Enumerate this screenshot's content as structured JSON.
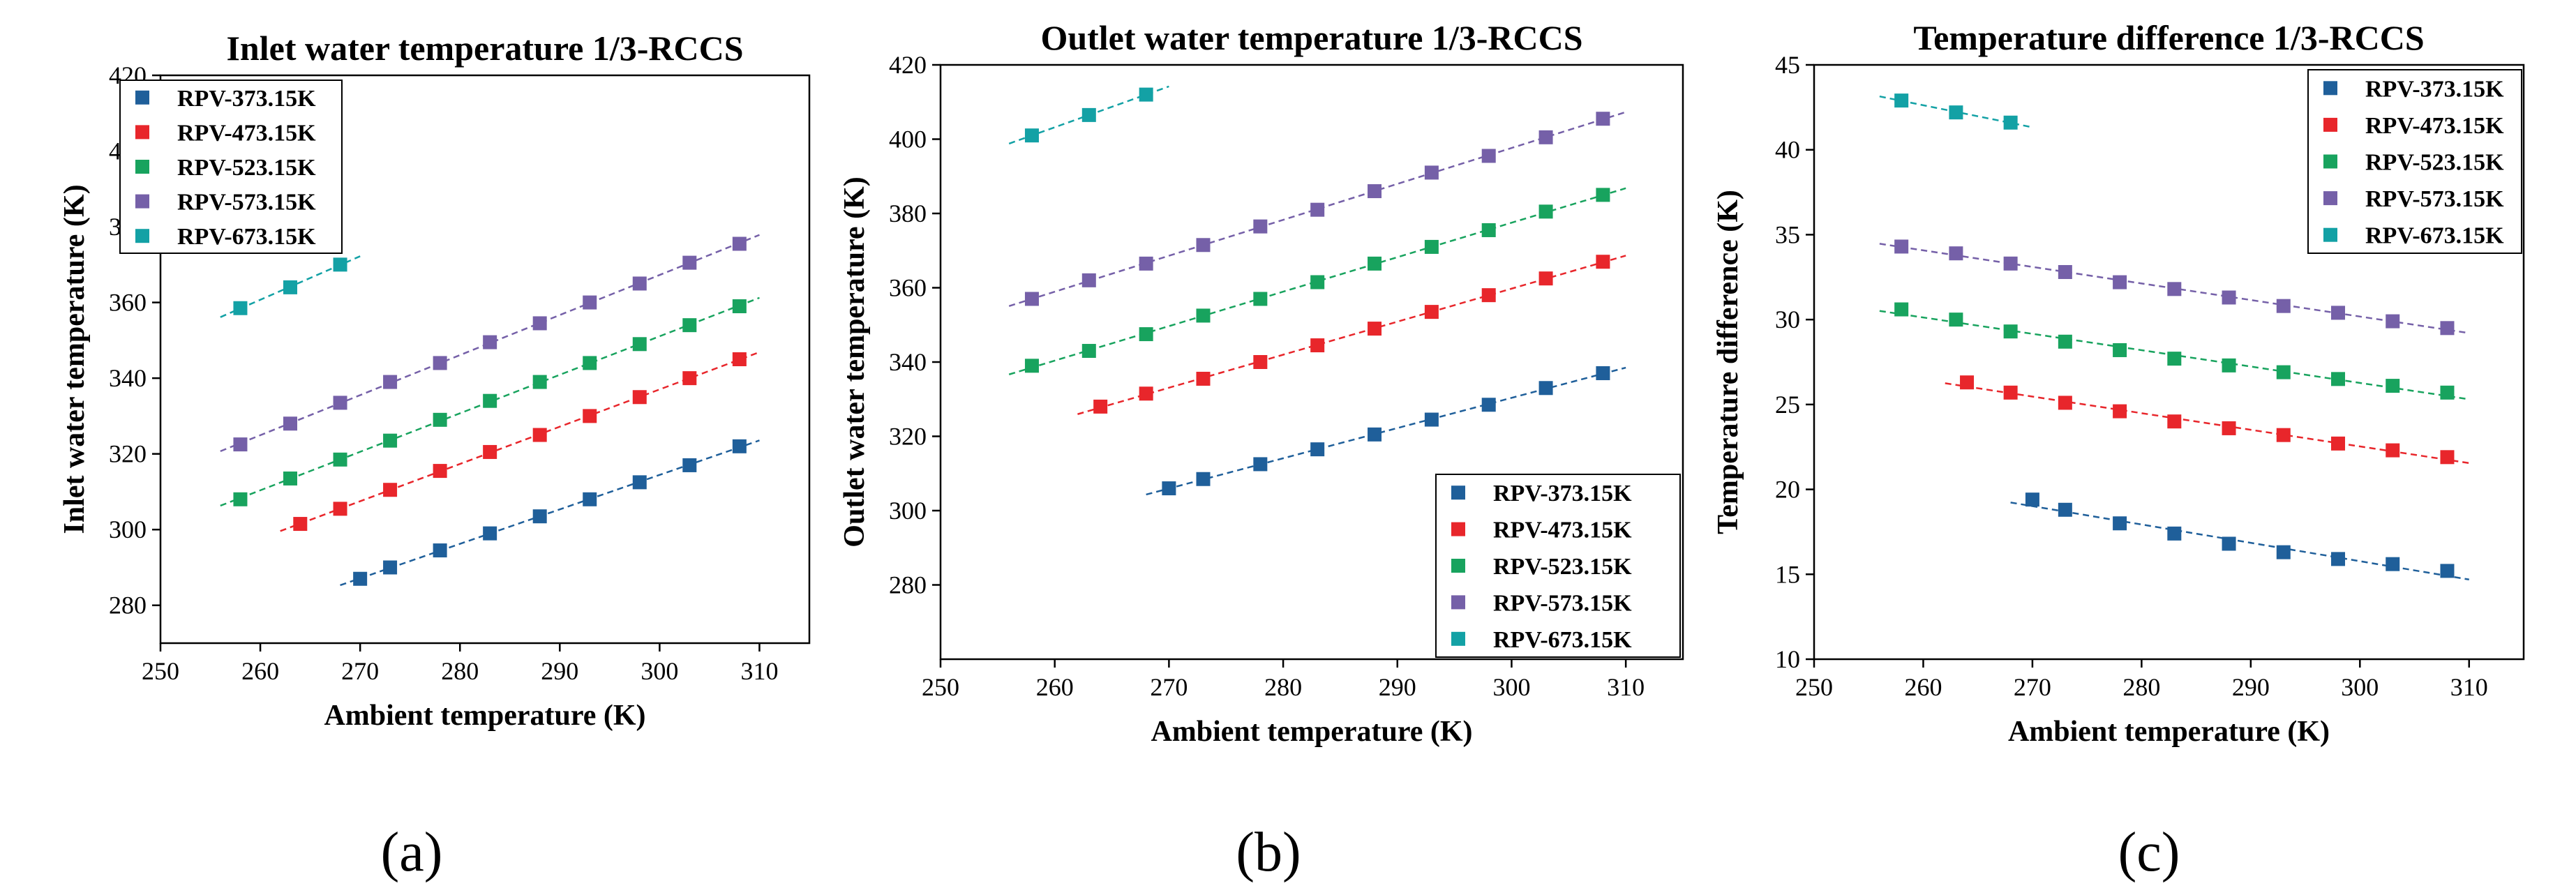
{
  "figure": {
    "colors": {
      "RPV-373.15K": "#1f5f9a",
      "RPV-473.15K": "#e8262b",
      "RPV-523.15K": "#18a35e",
      "RPV-573.15K": "#7560a8",
      "RPV-673.15K": "#13a1a5"
    }
  },
  "chart_data": [
    {
      "type": "scatter",
      "caption": "(a)",
      "title": "Inlet water temperature 1/3-RCCS",
      "xlabel": "Ambient temperature (K)",
      "ylabel": "Inlet water temperature (K)",
      "xlim": [
        250,
        315
      ],
      "ylim": [
        270,
        420
      ],
      "xticks": [
        250,
        260,
        270,
        280,
        290,
        300,
        310
      ],
      "yticks": [
        280,
        300,
        320,
        340,
        360,
        380,
        400,
        420
      ],
      "grid": false,
      "legend": "top-left",
      "series": [
        {
          "name": "RPV-373.15K",
          "x": [
            270,
            273,
            278,
            283,
            288,
            293,
            298,
            303,
            308
          ],
          "y": [
            287,
            290,
            294.5,
            299,
            303.5,
            308,
            312.5,
            317,
            322
          ]
        },
        {
          "name": "RPV-473.15K",
          "x": [
            264,
            268,
            273,
            278,
            283,
            288,
            293,
            298,
            303,
            308
          ],
          "y": [
            301.5,
            305.5,
            310.5,
            315.5,
            320.5,
            325,
            330,
            335,
            340,
            345
          ]
        },
        {
          "name": "RPV-523.15K",
          "x": [
            258,
            263,
            268,
            273,
            278,
            283,
            288,
            293,
            298,
            303,
            308
          ],
          "y": [
            308,
            313.5,
            318.5,
            323.5,
            329,
            334,
            339,
            344,
            349,
            354,
            359
          ]
        },
        {
          "name": "RPV-573.15K",
          "x": [
            258,
            263,
            268,
            273,
            278,
            283,
            288,
            293,
            298,
            303,
            308
          ],
          "y": [
            322.5,
            328,
            333.5,
            339,
            344,
            349.5,
            354.5,
            360,
            365,
            370.5,
            375.5
          ]
        },
        {
          "name": "RPV-673.15K",
          "x": [
            258,
            263,
            268
          ],
          "y": [
            358.5,
            364,
            370
          ]
        }
      ]
    },
    {
      "type": "scatter",
      "caption": "(b)",
      "title": "Outlet water temperature 1/3-RCCS",
      "xlabel": "Ambient temperature (K)",
      "ylabel": "Outlet water temperature (K)",
      "xlim": [
        250,
        315
      ],
      "ylim": [
        260,
        420
      ],
      "xticks": [
        250,
        260,
        270,
        280,
        290,
        300,
        310
      ],
      "yticks": [
        280,
        300,
        320,
        340,
        360,
        380,
        400,
        420
      ],
      "grid": false,
      "legend": "bottom-right",
      "series": [
        {
          "name": "RPV-373.15K",
          "x": [
            270,
            273,
            278,
            283,
            288,
            293,
            298,
            303,
            308
          ],
          "y": [
            306,
            308.5,
            312.5,
            316.5,
            320.5,
            324.5,
            328.5,
            333,
            337
          ]
        },
        {
          "name": "RPV-473.15K",
          "x": [
            264,
            268,
            273,
            278,
            283,
            288,
            293,
            298,
            303,
            308
          ],
          "y": [
            328,
            331.5,
            335.5,
            340,
            344.5,
            349,
            353.5,
            358,
            362.5,
            367
          ]
        },
        {
          "name": "RPV-523.15K",
          "x": [
            258,
            263,
            268,
            273,
            278,
            283,
            288,
            293,
            298,
            303,
            308
          ],
          "y": [
            339,
            343,
            347.5,
            352.5,
            357,
            361.5,
            366.5,
            371,
            375.5,
            380.5,
            385
          ]
        },
        {
          "name": "RPV-573.15K",
          "x": [
            258,
            263,
            268,
            273,
            278,
            283,
            288,
            293,
            298,
            303,
            308
          ],
          "y": [
            357,
            362,
            366.5,
            371.5,
            376.5,
            381,
            386,
            391,
            395.5,
            400.5,
            405.5
          ]
        },
        {
          "name": "RPV-673.15K",
          "x": [
            258,
            263,
            268
          ],
          "y": [
            401,
            406.5,
            412
          ]
        }
      ]
    },
    {
      "type": "scatter",
      "caption": "(c)",
      "title": "Temperature difference 1/3-RCCS",
      "xlabel": "Ambient temperature (K)",
      "ylabel": "Temperature difference (K)",
      "xlim": [
        250,
        315
      ],
      "ylim": [
        10,
        45
      ],
      "xticks": [
        250,
        260,
        270,
        280,
        290,
        300,
        310
      ],
      "yticks": [
        10,
        15,
        20,
        25,
        30,
        35,
        40,
        45
      ],
      "grid": false,
      "legend": "top-right",
      "series": [
        {
          "name": "RPV-373.15K",
          "x": [
            270,
            273,
            278,
            283,
            288,
            293,
            298,
            303,
            308
          ],
          "y": [
            19.4,
            18.8,
            18.0,
            17.4,
            16.8,
            16.3,
            15.9,
            15.6,
            15.2
          ]
        },
        {
          "name": "RPV-473.15K",
          "x": [
            264,
            268,
            273,
            278,
            283,
            288,
            293,
            298,
            303,
            308
          ],
          "y": [
            26.3,
            25.7,
            25.1,
            24.6,
            24.0,
            23.6,
            23.2,
            22.7,
            22.3,
            21.9
          ]
        },
        {
          "name": "RPV-523.15K",
          "x": [
            258,
            263,
            268,
            273,
            278,
            283,
            288,
            293,
            298,
            303,
            308
          ],
          "y": [
            30.6,
            30.0,
            29.3,
            28.7,
            28.2,
            27.7,
            27.3,
            26.9,
            26.5,
            26.1,
            25.7
          ]
        },
        {
          "name": "RPV-573.15K",
          "x": [
            258,
            263,
            268,
            273,
            278,
            283,
            288,
            293,
            298,
            303,
            308
          ],
          "y": [
            34.3,
            33.9,
            33.3,
            32.8,
            32.2,
            31.8,
            31.3,
            30.8,
            30.4,
            29.9,
            29.5
          ]
        },
        {
          "name": "RPV-673.15K",
          "x": [
            258,
            263,
            268
          ],
          "y": [
            42.9,
            42.2,
            41.6
          ]
        }
      ]
    }
  ]
}
